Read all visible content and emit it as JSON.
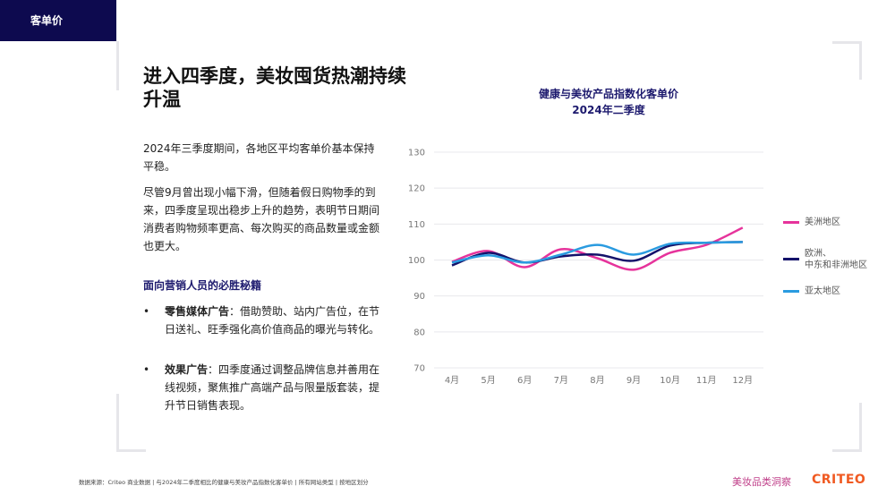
{
  "section_tag": "客单价",
  "title": "进入四季度，美妆囤货热潮持续升温",
  "paragraphs": [
    "2024年三季度期间，各地区平均客单价基本保持平稳。",
    "尽管9月曾出现小幅下滑，但随着假日购物季的到来，四季度呈现出稳步上升的趋势，表明节日期间消费者购物频率更高、每次购买的商品数量或金额也更大。"
  ],
  "tips_heading": "面向营销人员的必胜秘籍",
  "bullets": [
    {
      "bold": "零售媒体广告",
      "text": "：借助赞助、站内广告位，在节日送礼、旺季强化高价值商品的曝光与转化。"
    },
    {
      "bold": "效果广告",
      "text": "：四季度通过调整品牌信息并善用在线视频，聚焦推广高端产品与限量版套装，提升节日销售表现。"
    }
  ],
  "chart_data": {
    "type": "line",
    "title": "健康与美妆产品指数化客单价",
    "subtitle": "2024年二季度",
    "categories": [
      "4月",
      "5月",
      "6月",
      "7月",
      "8月",
      "9月",
      "10月",
      "11月",
      "12月"
    ],
    "ylim": [
      70,
      130
    ],
    "yticks": [
      130,
      120,
      110,
      100,
      90,
      80,
      70
    ],
    "grid": true,
    "legend_position": "right",
    "series": [
      {
        "name": "美洲地区",
        "color": "#e6339b",
        "values": [
          99.5,
          102.5,
          98,
          103,
          100.5,
          97.3,
          102,
          104.2,
          109
        ]
      },
      {
        "name": "欧洲、\n中东和非洲地区",
        "color": "#14126a",
        "values": [
          98.5,
          102,
          99.3,
          101,
          101.5,
          99.8,
          104,
          104.8,
          105
        ]
      },
      {
        "name": "亚太地区",
        "color": "#2a9be0",
        "values": [
          99.3,
          101.3,
          99.3,
          101.5,
          104.2,
          101.5,
          104.5,
          104.8,
          105
        ]
      }
    ]
  },
  "footer": {
    "source": "数据来源：Criteo 商业数据 | 与2024年二季度相比的健康与美妆产品指数化客单价 | 所有网站类型 | 按地区划分",
    "brand": "美妆品类洞察",
    "logo": "CRITEO"
  }
}
